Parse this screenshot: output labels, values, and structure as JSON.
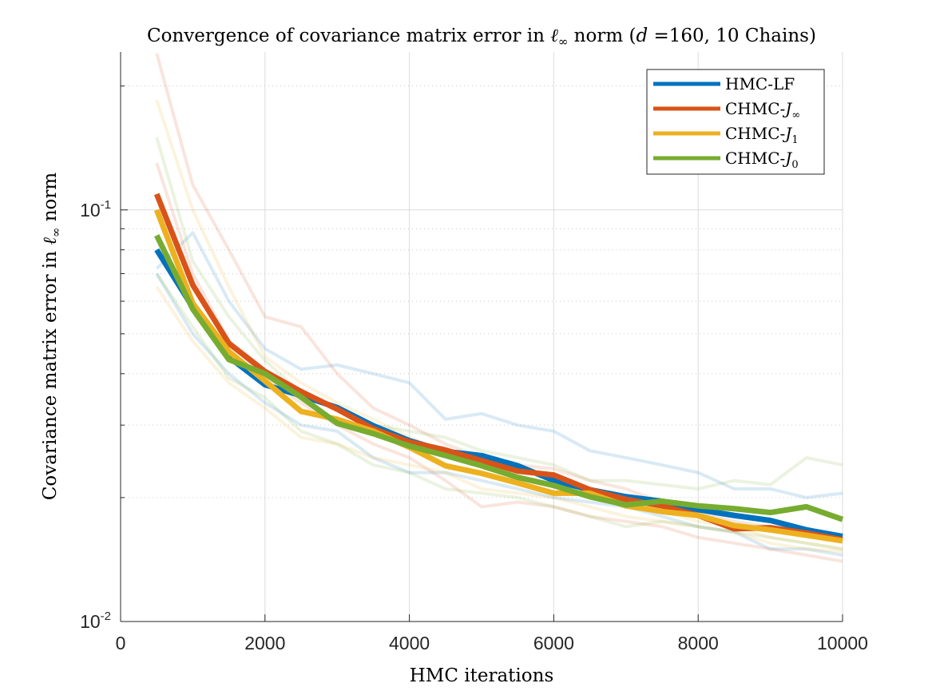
{
  "chart_data": {
    "type": "line",
    "title_parts": [
      "Convergence of covariance matrix error in ",
      "ℓ",
      "∞",
      " norm (",
      "d",
      " =160, 10 Chains)"
    ],
    "xlabel": "HMC iterations",
    "ylabel_parts": [
      "Covariance matrix error in ",
      "ℓ",
      "∞",
      " norm"
    ],
    "xlim": [
      0,
      10000
    ],
    "ylim": [
      0.01,
      0.242
    ],
    "yscale": "log",
    "xticks": [
      0,
      2000,
      4000,
      6000,
      8000,
      10000
    ],
    "xtick_labels": [
      "0",
      "2000",
      "4000",
      "6000",
      "8000",
      "10000"
    ],
    "yticks": [
      {
        "value": 0.1,
        "base": "10",
        "exp": "-1"
      },
      {
        "value": 0.01,
        "base": "10",
        "exp": "-2"
      }
    ],
    "grid": true,
    "minor_grid": true,
    "legend_position": "top-right",
    "x": [
      500,
      1000,
      1500,
      2000,
      2500,
      3000,
      3500,
      4000,
      4500,
      5000,
      5500,
      6000,
      6500,
      7000,
      7500,
      8000,
      8500,
      9000,
      9500,
      10000
    ],
    "series": [
      {
        "name": "HMC-LF",
        "label_prefix": "HMC-LF",
        "label_var": "",
        "label_sub": "",
        "color": "#0072BD",
        "values": [
          0.08,
          0.058,
          0.0439,
          0.0376,
          0.0354,
          0.0331,
          0.0299,
          0.0275,
          0.0259,
          0.0253,
          0.0239,
          0.022,
          0.0209,
          0.0201,
          0.0196,
          0.0187,
          0.0181,
          0.0176,
          0.0167,
          0.0161
        ]
      },
      {
        "name": "CHMC-J∞",
        "label_prefix": "CHMC-",
        "label_var": "J",
        "label_sub": "∞",
        "color": "#D95319",
        "values": [
          0.1093,
          0.0657,
          0.0474,
          0.0405,
          0.0362,
          0.0328,
          0.0294,
          0.0273,
          0.0261,
          0.0246,
          0.0232,
          0.0227,
          0.0209,
          0.0198,
          0.0191,
          0.0181,
          0.0168,
          0.0169,
          0.0164,
          0.0158
        ]
      },
      {
        "name": "CHMC-J1",
        "label_prefix": "CHMC-",
        "label_var": "J",
        "label_sub": "1",
        "color": "#EDB120",
        "values": [
          0.1,
          0.0593,
          0.0453,
          0.0384,
          0.0324,
          0.031,
          0.029,
          0.0265,
          0.0239,
          0.0229,
          0.0217,
          0.0205,
          0.0205,
          0.0191,
          0.0185,
          0.0181,
          0.0171,
          0.0167,
          0.0162,
          0.0157
        ]
      },
      {
        "name": "CHMC-J0",
        "label_prefix": "CHMC-",
        "label_var": "J",
        "label_sub": "0",
        "color": "#77AC30",
        "values": [
          0.0867,
          0.0574,
          0.0433,
          0.04,
          0.0351,
          0.0303,
          0.0286,
          0.0267,
          0.0253,
          0.0239,
          0.0224,
          0.0214,
          0.0201,
          0.0192,
          0.0196,
          0.0191,
          0.0188,
          0.0184,
          0.019,
          0.0177
        ]
      }
    ],
    "chains": [
      {
        "series": 0,
        "values": [
          0.072,
          0.088,
          0.06,
          0.046,
          0.041,
          0.042,
          0.04,
          0.038,
          0.031,
          0.032,
          0.03,
          0.029,
          0.026,
          0.025,
          0.024,
          0.023,
          0.021,
          0.021,
          0.02,
          0.0205
        ]
      },
      {
        "series": 0,
        "values": [
          0.07,
          0.05,
          0.04,
          0.034,
          0.03,
          0.029,
          0.025,
          0.023,
          0.023,
          0.022,
          0.021,
          0.02,
          0.0195,
          0.019,
          0.018,
          0.017,
          0.0165,
          0.015,
          0.015,
          0.0145
        ]
      },
      {
        "series": 1,
        "values": [
          0.24,
          0.115,
          0.08,
          0.055,
          0.052,
          0.04,
          0.033,
          0.03,
          0.027,
          0.025,
          0.024,
          0.0235,
          0.022,
          0.021,
          0.0195,
          0.0185,
          0.0175,
          0.017,
          0.0165,
          0.016
        ]
      },
      {
        "series": 1,
        "values": [
          0.13,
          0.07,
          0.048,
          0.039,
          0.034,
          0.03,
          0.027,
          0.025,
          0.022,
          0.019,
          0.0195,
          0.019,
          0.018,
          0.0175,
          0.017,
          0.016,
          0.0155,
          0.015,
          0.0145,
          0.014
        ]
      },
      {
        "series": 2,
        "values": [
          0.185,
          0.1,
          0.065,
          0.044,
          0.038,
          0.034,
          0.031,
          0.028,
          0.026,
          0.024,
          0.0225,
          0.0215,
          0.02,
          0.0195,
          0.0185,
          0.0175,
          0.017,
          0.016,
          0.0155,
          0.015
        ]
      },
      {
        "series": 2,
        "values": [
          0.065,
          0.048,
          0.038,
          0.033,
          0.028,
          0.027,
          0.025,
          0.024,
          0.023,
          0.021,
          0.0205,
          0.02,
          0.019,
          0.018,
          0.0175,
          0.017,
          0.0165,
          0.0155,
          0.015,
          0.0148
        ]
      },
      {
        "series": 3,
        "values": [
          0.15,
          0.075,
          0.055,
          0.043,
          0.036,
          0.033,
          0.03,
          0.029,
          0.028,
          0.026,
          0.025,
          0.024,
          0.022,
          0.022,
          0.0215,
          0.021,
          0.022,
          0.0215,
          0.025,
          0.024
        ]
      },
      {
        "series": 3,
        "values": [
          0.07,
          0.052,
          0.039,
          0.035,
          0.029,
          0.027,
          0.024,
          0.023,
          0.021,
          0.0205,
          0.02,
          0.019,
          0.018,
          0.017,
          0.0175,
          0.017,
          0.0165,
          0.016,
          0.0155,
          0.015
        ]
      }
    ]
  }
}
